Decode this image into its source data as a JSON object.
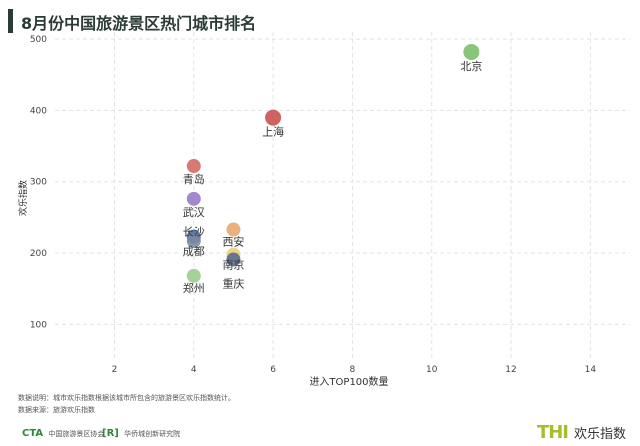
{
  "title": "8月份中国旅游景区热门城市排名",
  "chart_data": {
    "type": "scatter",
    "title": "8月份中国旅游景区热门城市排名",
    "xlabel": "进入TOP100数量",
    "ylabel": "欢乐指数",
    "xlim": [
      0.5,
      15
    ],
    "ylim": [
      50,
      510
    ],
    "x_ticks": [
      2,
      4,
      6,
      8,
      10,
      12,
      14
    ],
    "y_ticks": [
      100,
      200,
      300,
      400,
      500
    ],
    "grid": true,
    "points": [
      {
        "label": "北京",
        "x": 11,
        "y": 482,
        "color": "#7cbf6a"
      },
      {
        "label": "上海",
        "x": 6,
        "y": 390,
        "color": "#c9524e"
      },
      {
        "label": "青岛",
        "x": 4,
        "y": 322,
        "color": "#d46a64"
      },
      {
        "label": "武汉",
        "x": 4,
        "y": 276,
        "color": "#9a7bc8"
      },
      {
        "label": "长沙",
        "x": 4,
        "y": 223,
        "color": "#4a6aa8"
      },
      {
        "label": "成都",
        "x": 4,
        "y": 217,
        "color": "#7a8aa0"
      },
      {
        "label": "郑州",
        "x": 4,
        "y": 168,
        "color": "#9ccd8c"
      },
      {
        "label": "西安",
        "x": 5,
        "y": 233,
        "color": "#e8a86c"
      },
      {
        "label": "南京",
        "x": 5,
        "y": 198,
        "color": "#ecd27c"
      },
      {
        "label": "重庆",
        "x": 5,
        "y": 191,
        "color": "#5a6a8e"
      }
    ]
  },
  "notes": {
    "line1": "数据说明：城市欢乐指数根据该城市所包含的旅游景区欢乐指数统计。",
    "line2": "数据来源：旅游欢乐指数"
  },
  "footer": {
    "org1_mark": "CTA",
    "org1_name": "中国旅游景区协会",
    "org2_mark": "[R]",
    "org2_name": "华侨城创新研究院",
    "brand_logo": "THI",
    "brand_name": "欢乐指数"
  }
}
